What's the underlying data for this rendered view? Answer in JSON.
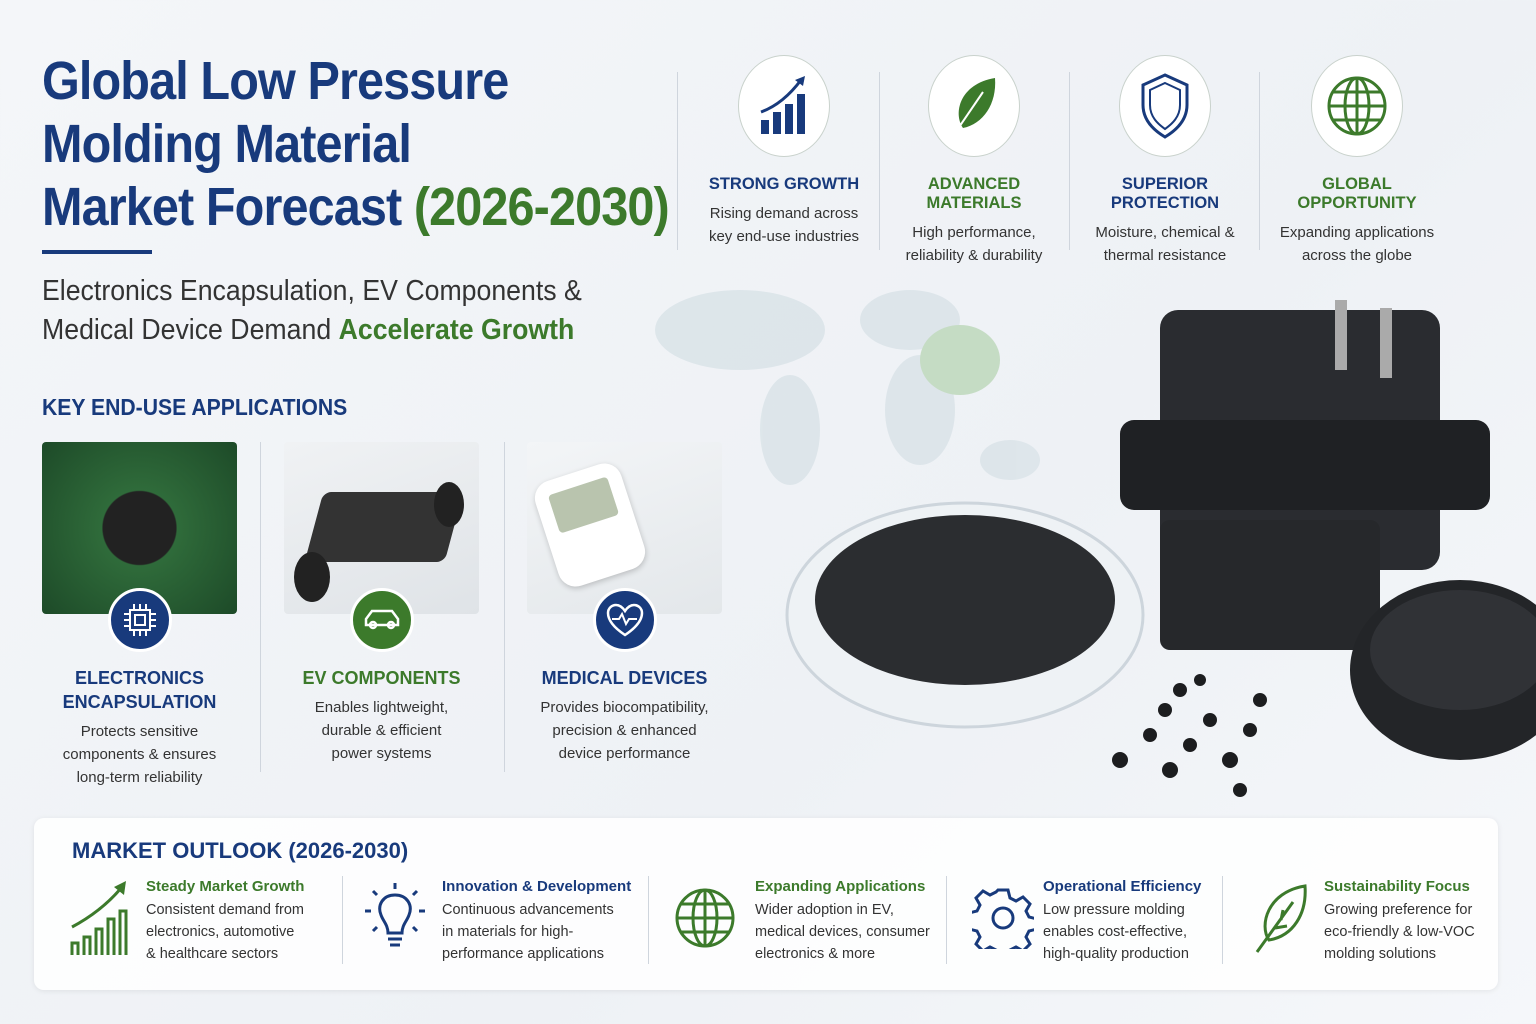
{
  "header": {
    "title_line1": "Global Low Pressure",
    "title_line2": "Molding Material",
    "title_line3": "Market Forecast",
    "title_years": "(2026-2030)",
    "subtitle_line1": "Electronics Encapsulation, EV Components &",
    "subtitle_line2": "Medical Device Demand",
    "subtitle_highlight": "Accelerate Growth"
  },
  "features": [
    {
      "icon": "bar-chart-growth-icon",
      "title": "STRONG GROWTH",
      "line1": "Rising demand across",
      "line2": "key end-use industries",
      "color": "#183a7c"
    },
    {
      "icon": "leaf-icon",
      "title": "ADVANCED MATERIALS",
      "line1": "High performance,",
      "line2": "reliability & durability",
      "color": "#3c7a2b"
    },
    {
      "icon": "shield-icon",
      "title": "SUPERIOR PROTECTION",
      "line1": "Moisture, chemical &",
      "line2": "thermal resistance",
      "color": "#183a7c"
    },
    {
      "icon": "globe-icon",
      "title": "GLOBAL OPPORTUNITY",
      "line1": "Expanding applications",
      "line2": "across the globe",
      "color": "#3c7a2b"
    }
  ],
  "applications": {
    "heading": "KEY END-USE APPLICATIONS",
    "items": [
      {
        "icon": "chip-icon",
        "title1": "ELECTRONICS",
        "title2": "ENCAPSULATION",
        "l1": "Protects sensitive",
        "l2": "components & ensures",
        "l3": "long-term reliability"
      },
      {
        "icon": "car-icon",
        "title1": "EV COMPONENTS",
        "title2": "",
        "l1": "Enables lightweight,",
        "l2": "durable & efficient",
        "l3": "power systems"
      },
      {
        "icon": "heart-pulse-icon",
        "title1": "MEDICAL DEVICES",
        "title2": "",
        "l1": "Provides biocompatibility,",
        "l2": "precision & enhanced",
        "l3": "device performance"
      }
    ]
  },
  "outlook": {
    "title": "MARKET OUTLOOK (2026-2030)",
    "items": [
      {
        "icon": "growth-chart-icon",
        "title": "Steady Market Growth",
        "l1": "Consistent demand from",
        "l2": "electronics, automotive",
        "l3": "& healthcare sectors",
        "color": "#3c7a2b"
      },
      {
        "icon": "lightbulb-icon",
        "title": "Innovation & Development",
        "l1": "Continuous advancements",
        "l2": "in materials for high-",
        "l3": "performance applications",
        "color": "#183a7c"
      },
      {
        "icon": "globe-icon",
        "title": "Expanding Applications",
        "l1": "Wider adoption in EV,",
        "l2": "medical devices, consumer",
        "l3": "electronics & more",
        "color": "#3c7a2b"
      },
      {
        "icon": "gear-icon",
        "title": "Operational Efficiency",
        "l1": "Low pressure molding",
        "l2": "enables cost-effective,",
        "l3": "high-quality production",
        "color": "#183a7c"
      },
      {
        "icon": "leaf-icon",
        "title": "Sustainability Focus",
        "l1": "Growing preference for",
        "l2": "eco-friendly & low-VOC",
        "l3": "molding solutions",
        "color": "#3c7a2b"
      }
    ]
  },
  "colors": {
    "navy": "#183a7c",
    "green": "#3c7a2b"
  }
}
